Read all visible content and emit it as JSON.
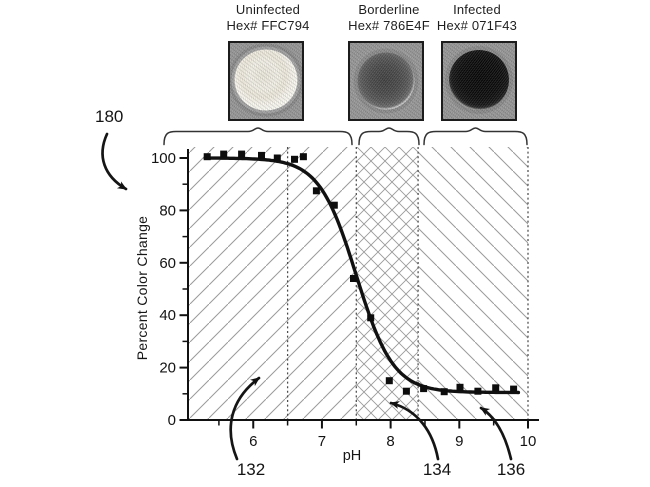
{
  "figure": {
    "refs": {
      "system": "180",
      "uninfected_pointer": "132",
      "borderline_pointer": "134",
      "infected_pointer": "136"
    }
  },
  "samples": [
    {
      "name": "Uninfected",
      "hex_label": "Hex# FFC794",
      "hex": "#FFC794",
      "well_appearance": "light cream well"
    },
    {
      "name": "Borderline",
      "hex_label": "Hex# 786E4F",
      "hex": "#786E4F",
      "well_appearance": "dark gray center with white ring"
    },
    {
      "name": "Infected",
      "hex_label": "Hex# 071F43",
      "hex": "#071F43",
      "well_appearance": "near-black center with white ring"
    }
  ],
  "colors": {
    "curve": "#111111",
    "data_point": "#0d0d0d",
    "hatch_line": "#9a9a9a",
    "dashed_line": "#4d4d4d",
    "axis": "#111111",
    "text": "#1a1a1a"
  },
  "chart_data": {
    "type": "scatter",
    "title": "",
    "xlabel": "pH",
    "ylabel": "Percent Color Change",
    "xlim": [
      5.05,
      10.15
    ],
    "ylim": [
      0,
      103
    ],
    "xticks": [
      6,
      7,
      8,
      9,
      10
    ],
    "yticks": [
      0,
      20,
      40,
      60,
      80,
      100
    ],
    "minor_xticks": [
      5.5,
      6.5,
      7.5,
      8.5,
      9.5
    ],
    "minor_yticks": [
      10,
      30,
      50,
      70,
      90
    ],
    "grid": false,
    "legend": "none",
    "points": [
      [
        5.33,
        100.5
      ],
      [
        5.57,
        101.5
      ],
      [
        5.83,
        101.5
      ],
      [
        6.12,
        101
      ],
      [
        6.35,
        100
      ],
      [
        6.6,
        99.5
      ],
      [
        6.73,
        100.5
      ],
      [
        6.92,
        87.5
      ],
      [
        7.18,
        82
      ],
      [
        7.46,
        54
      ],
      [
        7.71,
        39
      ],
      [
        7.98,
        15
      ],
      [
        8.23,
        11
      ],
      [
        8.48,
        12
      ],
      [
        8.78,
        10.8
      ],
      [
        9.01,
        12.5
      ],
      [
        9.27,
        11
      ],
      [
        9.53,
        12.3
      ],
      [
        9.79,
        11.8
      ]
    ],
    "fit_curve": {
      "type": "sigmoid",
      "baseline_pct": 10.5,
      "amplitude_pct": 89.5,
      "center_ph": 7.5,
      "width_ph": 0.27,
      "x_start": 5.3,
      "x_end": 9.87
    },
    "dashed_vlines_ph": [
      6.5,
      7.5,
      8.4,
      10
    ],
    "regions": [
      {
        "name": "Uninfected",
        "ph_from": 5.05,
        "ph_to": 7.5,
        "hatch": "forward-diagonal"
      },
      {
        "name": "Borderline",
        "ph_from": 7.5,
        "ph_to": 8.4,
        "hatch": "cross"
      },
      {
        "name": "Infected",
        "ph_from": 8.4,
        "ph_to": 10,
        "hatch": "backward-diagonal"
      }
    ]
  }
}
